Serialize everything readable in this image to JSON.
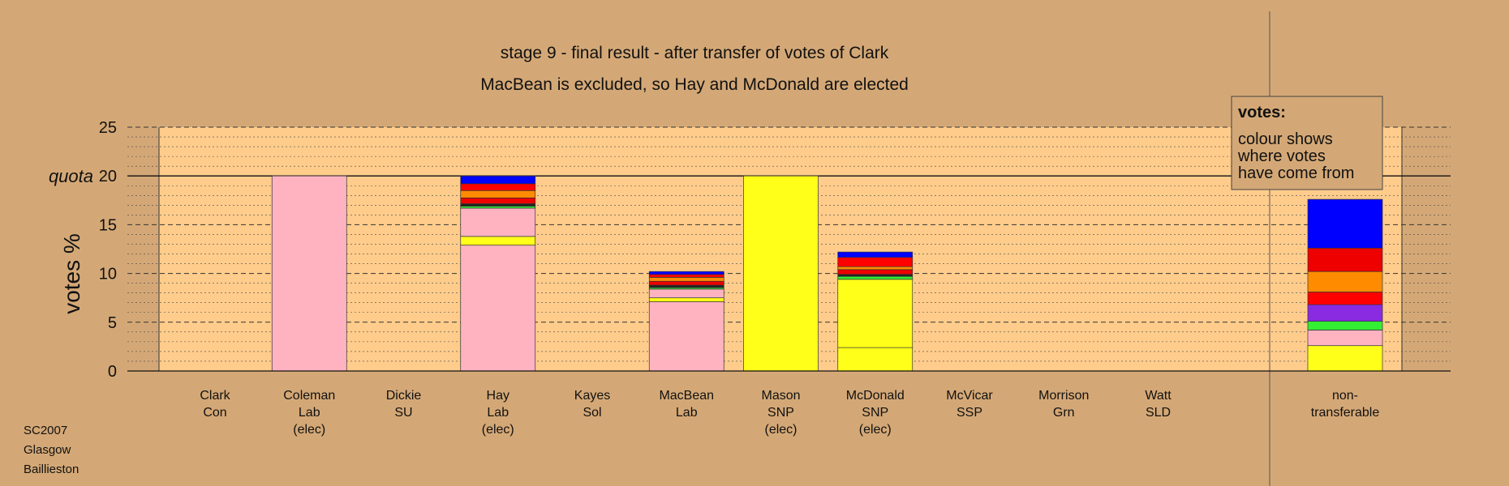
{
  "colors": {
    "background": "#d4a876",
    "plot_bg": "#ffcc8c",
    "Lab": "#ffb3c1",
    "SNP": "#ffff19",
    "Grn": "#33ee33",
    "SSP": "#8a2be2",
    "Sol": "#ee0000",
    "SU": "#ff8c00",
    "SLD": "#ff0000",
    "Con": "#0000ff",
    "dark": "#222222"
  },
  "footer": [
    "SC2007",
    "Glasgow",
    "Baillieston"
  ],
  "legend": {
    "title": "votes:",
    "lines": [
      "colour shows",
      "where votes",
      "have come from"
    ]
  },
  "chart_data": {
    "type": "bar",
    "stacked": true,
    "title": "stage 9 - final result - after transfer of votes of Clark",
    "subtitle": "MacBean is excluded, so Hay and McDonald are elected",
    "xlabel": "",
    "ylabel": "votes %",
    "ylim": [
      0,
      25
    ],
    "yticks": [
      0,
      5,
      10,
      15,
      20,
      25
    ],
    "ytick_labels": [
      "0",
      "5",
      "10",
      "15",
      "quota 20",
      "25"
    ],
    "quota": 20,
    "grid": true,
    "legend_position": "top-right",
    "categories": [
      {
        "name": "Clark",
        "party": "Con",
        "note": ""
      },
      {
        "name": "Coleman",
        "party": "Lab",
        "note": "(elec)"
      },
      {
        "name": "Dickie",
        "party": "SU",
        "note": ""
      },
      {
        "name": "Hay",
        "party": "Lab",
        "note": "(elec)"
      },
      {
        "name": "Kayes",
        "party": "Sol",
        "note": ""
      },
      {
        "name": "MacBean",
        "party": "Lab",
        "note": ""
      },
      {
        "name": "Mason",
        "party": "SNP",
        "note": "(elec)"
      },
      {
        "name": "McDonald",
        "party": "SNP",
        "note": "(elec)"
      },
      {
        "name": "McVicar",
        "party": "SSP",
        "note": ""
      },
      {
        "name": "Morrison",
        "party": "Grn",
        "note": ""
      },
      {
        "name": "Watt",
        "party": "SLD",
        "note": ""
      },
      {
        "name": "non-",
        "party": "transferable",
        "note": ""
      }
    ],
    "stacks": [
      [],
      [
        {
          "color": "Lab",
          "value": 20.0
        }
      ],
      [],
      [
        {
          "color": "Lab",
          "value": 12.9
        },
        {
          "color": "SNP",
          "value": 0.9
        },
        {
          "color": "Lab",
          "value": 2.9
        },
        {
          "color": "Grn",
          "value": 0.2
        },
        {
          "color": "dark",
          "value": 0.25
        },
        {
          "color": "Sol",
          "value": 0.6
        },
        {
          "color": "SU",
          "value": 0.75
        },
        {
          "color": "SLD",
          "value": 0.7
        },
        {
          "color": "Con",
          "value": 0.8
        }
      ],
      [],
      [
        {
          "color": "Lab",
          "value": 7.1
        },
        {
          "color": "SNP",
          "value": 0.4
        },
        {
          "color": "Lab",
          "value": 0.9
        },
        {
          "color": "Grn",
          "value": 0.15
        },
        {
          "color": "dark",
          "value": 0.25
        },
        {
          "color": "Sol",
          "value": 0.4
        },
        {
          "color": "SU",
          "value": 0.4
        },
        {
          "color": "SLD",
          "value": 0.3
        },
        {
          "color": "Con",
          "value": 0.3
        }
      ],
      [
        {
          "color": "SNP",
          "value": 20.0
        }
      ],
      [
        {
          "color": "SNP",
          "value": 2.4
        },
        {
          "color": "SNP",
          "value": 7.0
        },
        {
          "color": "Grn",
          "value": 0.3
        },
        {
          "color": "dark",
          "value": 0.2
        },
        {
          "color": "Sol",
          "value": 0.5
        },
        {
          "color": "SU",
          "value": 0.3
        },
        {
          "color": "SLD",
          "value": 0.95
        },
        {
          "color": "Con",
          "value": 0.55
        }
      ],
      [],
      [],
      [],
      [
        {
          "color": "SNP",
          "value": 2.6
        },
        {
          "color": "Lab",
          "value": 1.6
        },
        {
          "color": "Grn",
          "value": 0.9
        },
        {
          "color": "SSP",
          "value": 1.7
        },
        {
          "color": "SLD",
          "value": 1.3
        },
        {
          "color": "SU",
          "value": 2.1
        },
        {
          "color": "Sol",
          "value": 2.4
        },
        {
          "color": "Con",
          "value": 5.0
        }
      ]
    ]
  }
}
